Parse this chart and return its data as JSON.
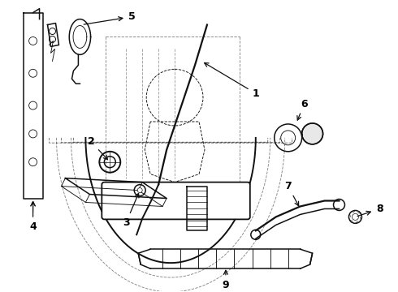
{
  "bg_color": "#ffffff",
  "line_color": "#111111",
  "label_color": "#000000",
  "figsize": [
    4.9,
    3.6
  ],
  "dpi": 100
}
